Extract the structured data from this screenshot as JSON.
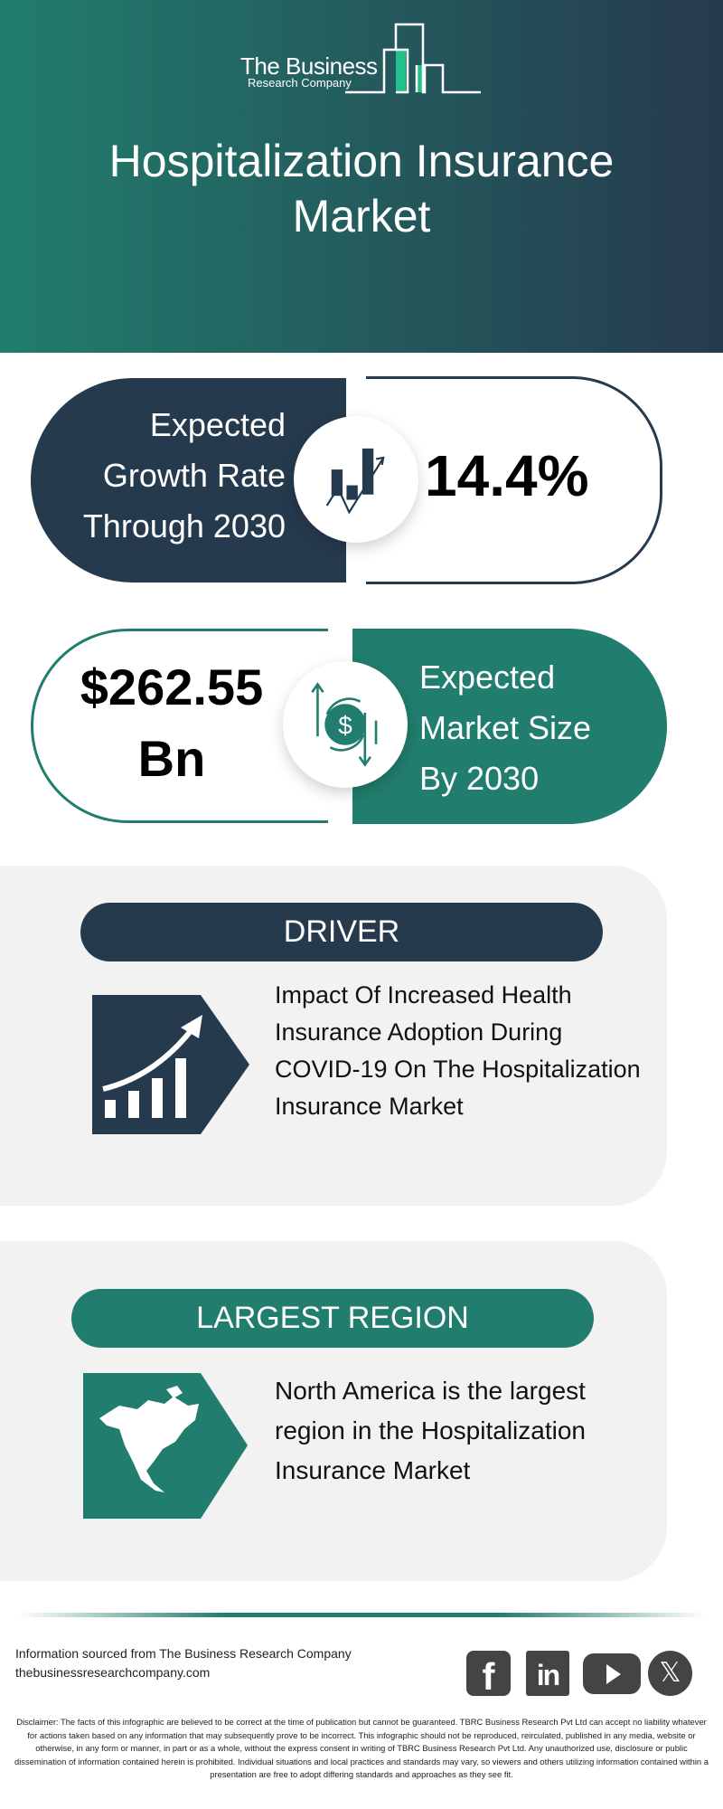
{
  "header": {
    "logo_line1": "The Business",
    "logo_line2": "Research Company",
    "title": "Hospitalization Insurance Market"
  },
  "growth": {
    "label_lines": [
      "Expected",
      "Growth Rate",
      "Through 2030"
    ],
    "value": "14.4%",
    "icon": "growth-chart-icon"
  },
  "market_size": {
    "value_lines": [
      "$262.55",
      "Bn"
    ],
    "label_lines": [
      "Expected",
      "Market Size",
      "By 2030"
    ],
    "icon": "dollar-exchange-icon"
  },
  "driver": {
    "heading": "DRIVER",
    "text": "Impact Of Increased Health Insurance Adoption During COVID-19 On The Hospitalization Insurance Market",
    "icon": "rising-bars-icon"
  },
  "region": {
    "heading": "LARGEST REGION",
    "text": "North America is the largest region in the Hospitalization Insurance Market",
    "icon": "north-america-map-icon"
  },
  "footer": {
    "source": "Information sourced from The Business Research Company",
    "website": "thebusinessresearchcompany.com",
    "social": [
      "facebook",
      "linkedin",
      "youtube",
      "x"
    ],
    "disclaimer": "Disclaimer: The facts of this infographic are believed to be correct at the time of publication but cannot be guaranteed. TBRC Business Research Pvt Ltd can accept no liability whatever for actions taken based on any information that may subsequently prove to be incorrect. This infographic should not be reproduced, reirculated, published in any media, website or otherwise, in any form or manner, in part or as a whole, without the express consent in writing of TBRC Business Research Pvt Ltd. Any unauthorized use, disclosure or public dissemination of information contained herein is prohibited. Individual situations and local practices and standards may vary, so viewers and others utilizing information contained within a presentation are free to adopt differing standards and approaches as they see fit."
  },
  "colors": {
    "navy": "#263a4e",
    "green": "#217d6d",
    "section_bg": "#f2f2f2"
  }
}
